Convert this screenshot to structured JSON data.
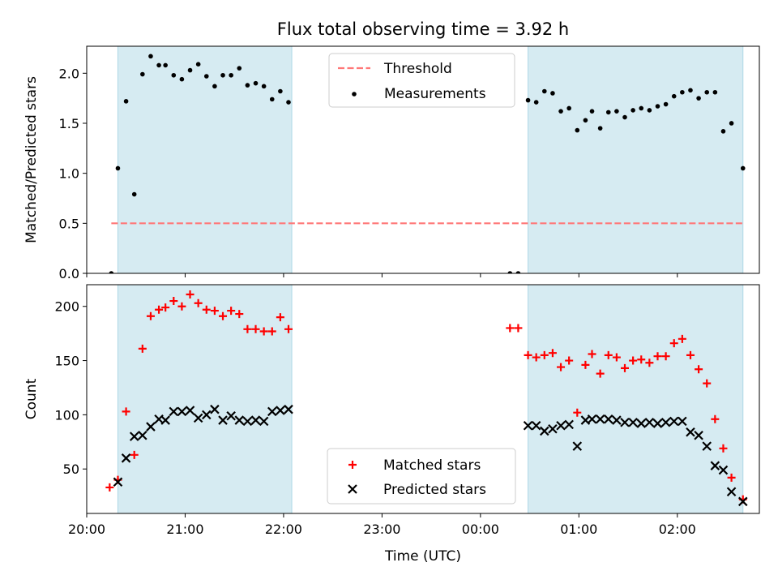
{
  "figure": {
    "title": "Flux total observing time = 3.92 h"
  },
  "chart_data": [
    {
      "type": "scatter",
      "title": "Flux total observing time = 3.92 h",
      "xlabel": "",
      "ylabel": "Matched/Predicted stars",
      "xlim": [
        "20:00",
        "02:50"
      ],
      "ylim": [
        0,
        2.27
      ],
      "yticks": [
        0.0,
        0.5,
        1.0,
        1.5,
        2.0
      ],
      "ytick_labels": [
        "0.0",
        "0.5",
        "1.0",
        "1.5",
        "2.0"
      ],
      "shaded_intervals": [
        [
          "20:19",
          "22:05"
        ],
        [
          "00:29",
          "02:40"
        ]
      ],
      "shade_color": "#add8e6",
      "threshold": {
        "name": "Threshold",
        "value": 0.5,
        "x_range": [
          "20:15",
          "02:40"
        ],
        "color": "#ff7777",
        "style": "dashed"
      },
      "legend": {
        "position": "top-center",
        "entries": [
          "Threshold",
          "Measurements"
        ]
      },
      "series": [
        {
          "name": "Measurements",
          "marker": "dot",
          "color": "#000000",
          "x": [
            "20:15",
            "20:19",
            "20:24",
            "20:29",
            "20:34",
            "20:39",
            "20:44",
            "20:48",
            "20:53",
            "20:58",
            "21:03",
            "21:08",
            "21:13",
            "21:18",
            "21:23",
            "21:28",
            "21:33",
            "21:38",
            "21:43",
            "21:48",
            "21:53",
            "21:58",
            "22:03",
            "00:18",
            "00:23",
            "00:29",
            "00:34",
            "00:39",
            "00:44",
            "00:49",
            "00:54",
            "00:59",
            "01:04",
            "01:08",
            "01:13",
            "01:18",
            "01:23",
            "01:28",
            "01:33",
            "01:38",
            "01:43",
            "01:48",
            "01:53",
            "01:58",
            "02:03",
            "02:08",
            "02:13",
            "02:18",
            "02:23",
            "02:28",
            "02:33",
            "02:40"
          ],
          "y": [
            0.0,
            1.05,
            1.72,
            0.79,
            1.99,
            2.17,
            2.08,
            2.08,
            1.98,
            1.94,
            2.03,
            2.09,
            1.97,
            1.87,
            1.98,
            1.98,
            2.05,
            1.88,
            1.9,
            1.87,
            1.74,
            1.82,
            1.71,
            0.0,
            0.0,
            1.73,
            1.71,
            1.82,
            1.8,
            1.62,
            1.65,
            1.43,
            1.53,
            1.62,
            1.45,
            1.61,
            1.62,
            1.56,
            1.63,
            1.65,
            1.63,
            1.67,
            1.69,
            1.77,
            1.81,
            1.83,
            1.75,
            1.81,
            1.81,
            1.42,
            1.5,
            1.05
          ]
        }
      ]
    },
    {
      "type": "scatter",
      "title": "",
      "xlabel": "Time (UTC)",
      "ylabel": "Count",
      "xlim": [
        "20:00",
        "02:50"
      ],
      "ylim": [
        9,
        220
      ],
      "yticks": [
        50,
        100,
        150,
        200
      ],
      "ytick_labels": [
        "50",
        "100",
        "150",
        "200"
      ],
      "xticks": [
        "20:00",
        "21:00",
        "22:00",
        "23:00",
        "00:00",
        "01:00",
        "02:00"
      ],
      "xtick_labels": [
        "20:00",
        "21:00",
        "22:00",
        "23:00",
        "00:00",
        "01:00",
        "02:00"
      ],
      "shaded_intervals": [
        [
          "20:19",
          "22:05"
        ],
        [
          "00:29",
          "02:40"
        ]
      ],
      "shade_color": "#add8e6",
      "legend": {
        "position": "bottom-center",
        "entries": [
          "Matched stars",
          "Predicted stars"
        ]
      },
      "series": [
        {
          "name": "Matched stars",
          "marker": "plus",
          "color": "#ff0000",
          "x": [
            "20:14",
            "20:19",
            "20:24",
            "20:29",
            "20:34",
            "20:39",
            "20:44",
            "20:48",
            "20:53",
            "20:58",
            "21:03",
            "21:08",
            "21:13",
            "21:18",
            "21:23",
            "21:28",
            "21:33",
            "21:38",
            "21:43",
            "21:48",
            "21:53",
            "21:58",
            "22:03",
            "00:18",
            "00:23",
            "00:29",
            "00:34",
            "00:39",
            "00:44",
            "00:49",
            "00:54",
            "00:59",
            "01:04",
            "01:08",
            "01:13",
            "01:18",
            "01:23",
            "01:28",
            "01:33",
            "01:38",
            "01:43",
            "01:48",
            "01:53",
            "01:58",
            "02:03",
            "02:08",
            "02:13",
            "02:18",
            "02:23",
            "02:28",
            "02:33",
            "02:40"
          ],
          "y": [
            33,
            40,
            103,
            63,
            161,
            191,
            197,
            199,
            205,
            200,
            211,
            203,
            197,
            196,
            191,
            196,
            193,
            179,
            179,
            177,
            177,
            190,
            179,
            180,
            180,
            155,
            153,
            155,
            157,
            144,
            150,
            102,
            146,
            156,
            138,
            155,
            153,
            143,
            150,
            151,
            148,
            154,
            154,
            166,
            170,
            155,
            142,
            129,
            96,
            69,
            42,
            22
          ]
        },
        {
          "name": "Predicted stars",
          "marker": "x",
          "color": "#000000",
          "x": [
            "20:19",
            "20:24",
            "20:29",
            "20:34",
            "20:39",
            "20:44",
            "20:48",
            "20:53",
            "20:58",
            "21:03",
            "21:08",
            "21:13",
            "21:18",
            "21:23",
            "21:28",
            "21:33",
            "21:38",
            "21:43",
            "21:48",
            "21:53",
            "21:58",
            "22:03",
            "00:29",
            "00:34",
            "00:39",
            "00:44",
            "00:49",
            "00:54",
            "00:59",
            "01:04",
            "01:08",
            "01:13",
            "01:18",
            "01:23",
            "01:28",
            "01:33",
            "01:38",
            "01:43",
            "01:48",
            "01:53",
            "01:58",
            "02:03",
            "02:08",
            "02:13",
            "02:18",
            "02:23",
            "02:28",
            "02:33",
            "02:40"
          ],
          "y": [
            38,
            60,
            80,
            81,
            89,
            96,
            95,
            103,
            103,
            104,
            97,
            100,
            105,
            95,
            99,
            95,
            94,
            95,
            94,
            103,
            104,
            105,
            90,
            90,
            85,
            87,
            90,
            91,
            71,
            95,
            96,
            96,
            96,
            95,
            93,
            93,
            92,
            93,
            92,
            93,
            94,
            94,
            84,
            81,
            71,
            53,
            49,
            29,
            20
          ]
        }
      ]
    }
  ]
}
